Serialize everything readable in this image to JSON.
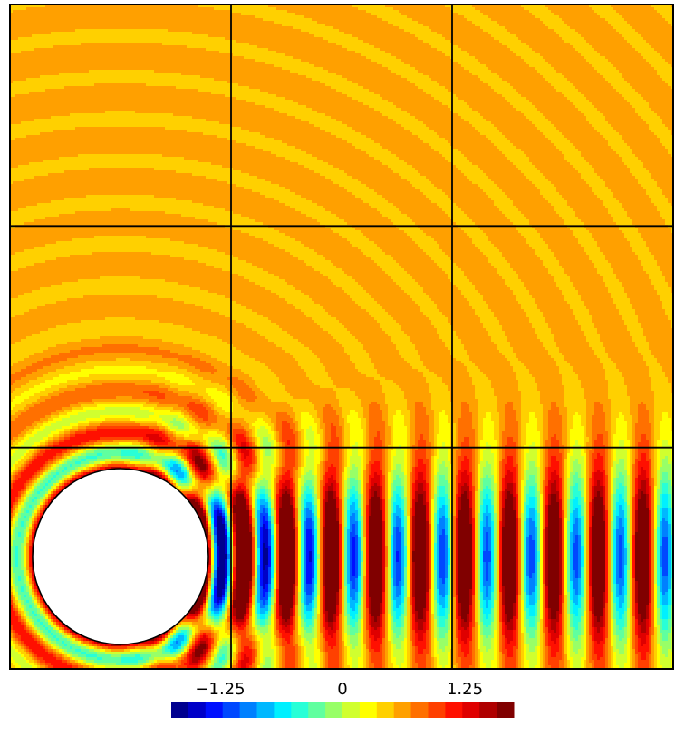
{
  "chart_data": {
    "type": "heatmap",
    "description_kind": "filled-contour wave field",
    "field": {
      "obstacle": "circle",
      "grid": {
        "rows": 3,
        "cols": 3
      }
    },
    "colorbar": {
      "min": -1.75,
      "max": 1.75,
      "levels": 20,
      "ticks": [
        {
          "value": -1.25,
          "label": "−1.25"
        },
        {
          "value": 0,
          "label": "0"
        },
        {
          "value": 1.25,
          "label": "1.25"
        }
      ],
      "colors": [
        "#00008f",
        "#0000c8",
        "#0010ff",
        "#0048ff",
        "#0080ff",
        "#00b8ff",
        "#00f0ff",
        "#28ffd7",
        "#60ff9f",
        "#98ff67",
        "#d0ff2f",
        "#ffff00",
        "#ffd000",
        "#ffa000",
        "#ff7000",
        "#ff4000",
        "#ff1000",
        "#df0000",
        "#af0000",
        "#800000"
      ]
    }
  }
}
